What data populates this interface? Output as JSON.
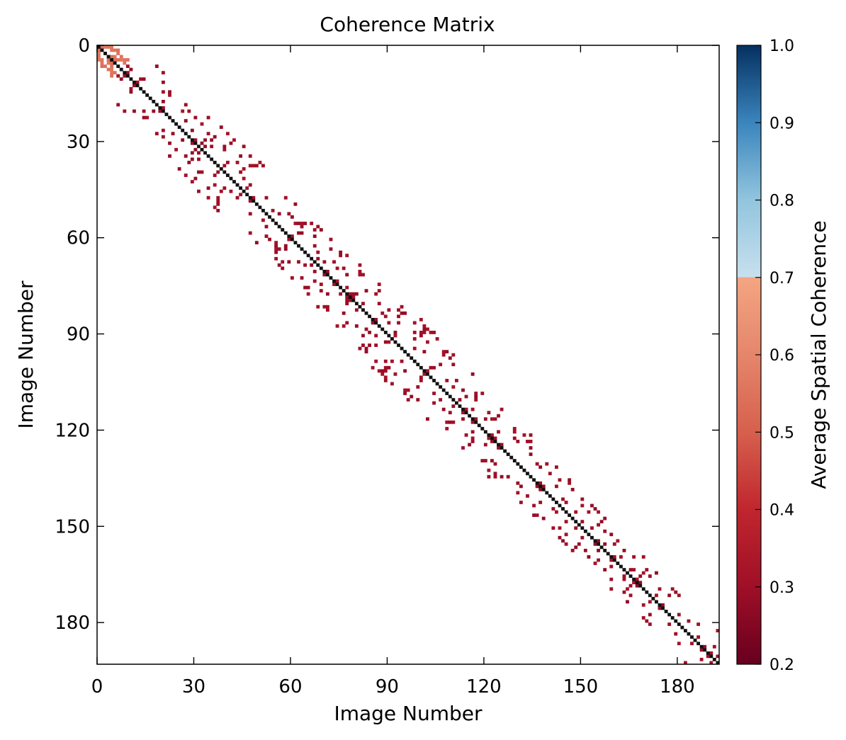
{
  "chart_data": {
    "type": "heatmap",
    "title": "Coherence Matrix",
    "xlabel": "Image Number",
    "ylabel": "Image Number",
    "n_images": 193,
    "xlim": [
      0,
      193
    ],
    "ylim": [
      193,
      0
    ],
    "x_ticks": [
      0,
      30,
      60,
      90,
      120,
      150,
      180
    ],
    "y_ticks": [
      0,
      30,
      60,
      90,
      120,
      150,
      180
    ],
    "grid": false,
    "diagonal_value": 1.0,
    "colorbar": {
      "label": "Average Spatial Coherence",
      "min": 0.2,
      "max": 1.0,
      "ticks": [
        0.2,
        0.3,
        0.4,
        0.5,
        0.6,
        0.7,
        0.8,
        0.9,
        1.0
      ],
      "masked_range": [
        0.2,
        0.7
      ],
      "colormap": "RdBu",
      "stops": [
        {
          "v": 0.2,
          "color": "#67001f"
        },
        {
          "v": 0.3,
          "color": "#9f0f27"
        },
        {
          "v": 0.4,
          "color": "#c0262e"
        },
        {
          "v": 0.5,
          "color": "#d6604d"
        },
        {
          "v": 0.6,
          "color": "#e5866b"
        },
        {
          "v": 0.7,
          "color": "#f4a582"
        },
        {
          "v": 0.7001,
          "color": "#c7e0ee"
        },
        {
          "v": 0.8,
          "color": "#92c5de"
        },
        {
          "v": 0.9,
          "color": "#3a85bd"
        },
        {
          "v": 1.0,
          "color": "#053061"
        }
      ]
    },
    "pair_bands": [
      {
        "from": 0,
        "to": 6,
        "halfwidth": 5,
        "value": 0.55
      },
      {
        "from": 6,
        "to": 24,
        "halfwidth": 12,
        "value": 0.3
      },
      {
        "from": 24,
        "to": 44,
        "halfwidth": 14,
        "value": 0.3
      },
      {
        "from": 44,
        "to": 62,
        "halfwidth": 12,
        "value": 0.3
      },
      {
        "from": 62,
        "to": 84,
        "halfwidth": 13,
        "value": 0.3
      },
      {
        "from": 84,
        "to": 106,
        "halfwidth": 15,
        "value": 0.3
      },
      {
        "from": 106,
        "to": 126,
        "halfwidth": 13,
        "value": 0.3
      },
      {
        "from": 126,
        "to": 146,
        "halfwidth": 11,
        "value": 0.3
      },
      {
        "from": 146,
        "to": 162,
        "halfwidth": 10,
        "value": 0.3
      },
      {
        "from": 162,
        "to": 193,
        "halfwidth": 10,
        "value": 0.3
      }
    ],
    "pair_density": 0.1
  }
}
